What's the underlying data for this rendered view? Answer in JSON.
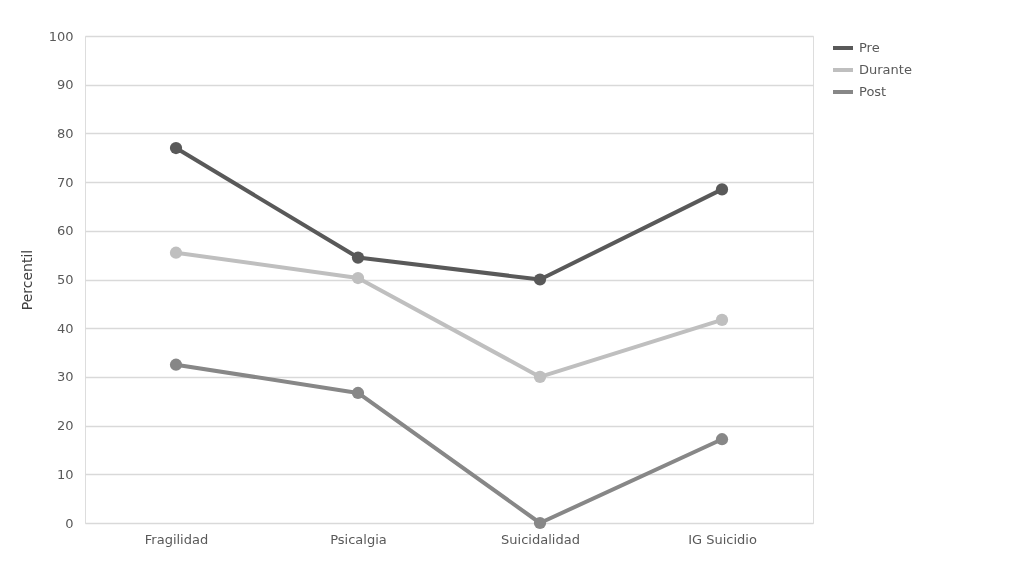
{
  "chart_data": {
    "type": "line",
    "ylabel": "Percentil",
    "categories": [
      "Fragilidad",
      "Psicalgia",
      "Suicidalidad",
      "IG Suicidio"
    ],
    "series": [
      {
        "name": "Pre",
        "color": "#595959",
        "values": [
          77,
          54.5,
          50,
          68.5
        ]
      },
      {
        "name": "Durante",
        "color": "#bfbfbf",
        "values": [
          55.5,
          50.3,
          30,
          41.7
        ]
      },
      {
        "name": "Post",
        "color": "#878787",
        "values": [
          32.5,
          26.7,
          0,
          17.2
        ]
      }
    ],
    "ylim": [
      0,
      100
    ],
    "yticks": [
      0,
      10,
      20,
      30,
      40,
      50,
      60,
      70,
      80,
      90,
      100
    ],
    "grid": "y",
    "legend": "right",
    "marker": "circle",
    "line_style": "solid"
  }
}
